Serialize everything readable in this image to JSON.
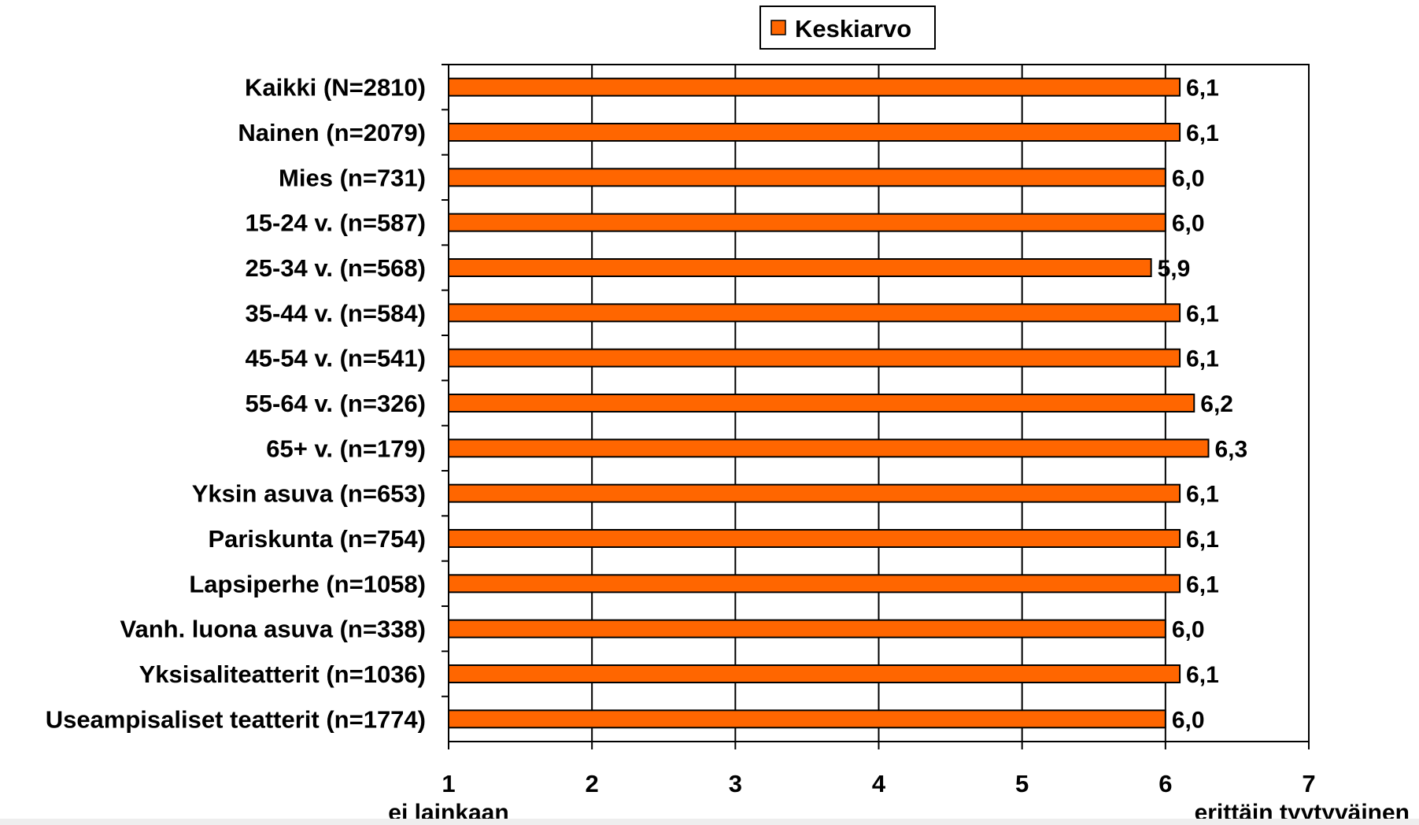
{
  "chart_data": {
    "type": "bar",
    "orientation": "horizontal",
    "categories": [
      "Kaikki (N=2810)",
      "Nainen (n=2079)",
      "Mies (n=731)",
      "15-24 v. (n=587)",
      "25-34 v. (n=568)",
      "35-44 v. (n=584)",
      "45-54 v. (n=541)",
      "55-64 v. (n=326)",
      "65+ v. (n=179)",
      "Yksin asuva (n=653)",
      "Pariskunta (n=754)",
      "Lapsiperhe (n=1058)",
      "Vanh. luona asuva (n=338)",
      "Yksisaliteatterit (n=1036)",
      "Useampisaliset teatterit (n=1774)"
    ],
    "series": [
      {
        "name": "Keskiarvo",
        "values": [
          6.1,
          6.1,
          6.0,
          6.0,
          5.9,
          6.1,
          6.1,
          6.2,
          6.3,
          6.1,
          6.1,
          6.1,
          6.0,
          6.1,
          6.0
        ],
        "labels": [
          "6,1",
          "6,1",
          "6,0",
          "6,0",
          "5,9",
          "6,1",
          "6,1",
          "6,2",
          "6,3",
          "6,1",
          "6,1",
          "6,1",
          "6,0",
          "6,1",
          "6,0"
        ]
      }
    ],
    "xlim": [
      1,
      7
    ],
    "xticks": [
      "1",
      "2",
      "3",
      "4",
      "5",
      "6",
      "7"
    ],
    "x_end_labels": {
      "min": "ei lainkaan",
      "max": "erittäin tyytyväinen"
    },
    "grid": true,
    "legend_position": "top-center",
    "colors": {
      "bar": "#ff6600",
      "bar_border": "#000000",
      "grid": "#000000"
    }
  }
}
